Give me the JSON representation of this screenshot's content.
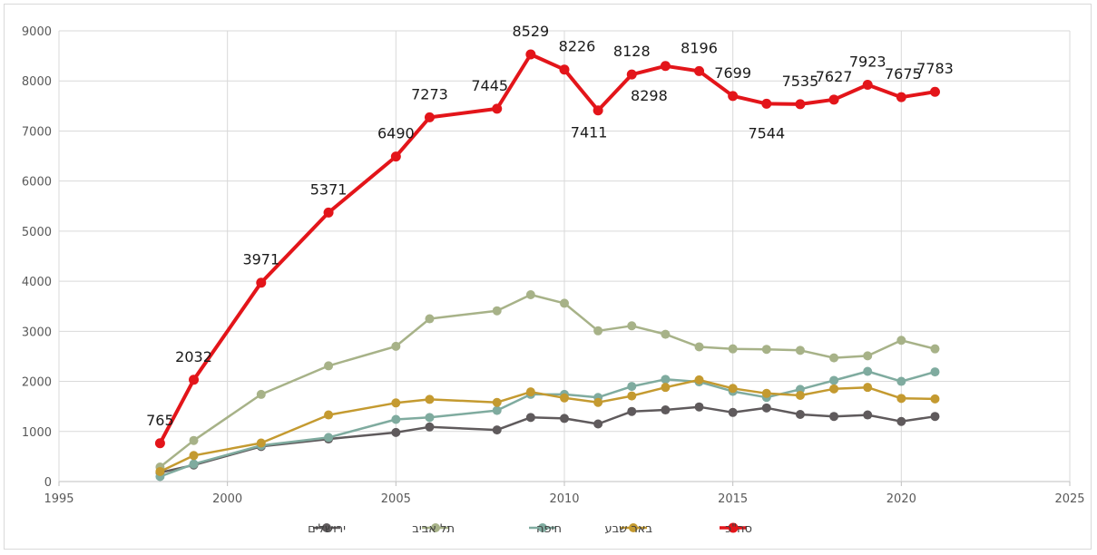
{
  "chart_data": {
    "type": "line",
    "xlim": [
      1995,
      2025
    ],
    "ylim": [
      0,
      9000
    ],
    "x_ticks": [
      1995,
      2000,
      2005,
      2010,
      2015,
      2020,
      2025
    ],
    "y_ticks": [
      0,
      1000,
      2000,
      3000,
      4000,
      5000,
      6000,
      7000,
      8000,
      9000
    ],
    "grid": true,
    "legend_position": "bottom",
    "series": [
      {
        "name": "ירושלים",
        "color": "#5f5a5c",
        "points": [
          [
            1998,
            180
          ],
          [
            1999,
            330
          ],
          [
            2001,
            700
          ],
          [
            2003,
            850
          ],
          [
            2005,
            980
          ],
          [
            2006,
            1090
          ],
          [
            2008,
            1030
          ],
          [
            2009,
            1280
          ],
          [
            2010,
            1260
          ],
          [
            2011,
            1150
          ],
          [
            2012,
            1400
          ],
          [
            2013,
            1430
          ],
          [
            2014,
            1490
          ],
          [
            2015,
            1380
          ],
          [
            2016,
            1470
          ],
          [
            2017,
            1340
          ],
          [
            2018,
            1300
          ],
          [
            2019,
            1330
          ],
          [
            2020,
            1200
          ],
          [
            2021,
            1300
          ]
        ]
      },
      {
        "name": "תל אביב",
        "color": "#a7b288",
        "points": [
          [
            1998,
            290
          ],
          [
            1999,
            820
          ],
          [
            2001,
            1740
          ],
          [
            2003,
            2310
          ],
          [
            2005,
            2700
          ],
          [
            2006,
            3250
          ],
          [
            2008,
            3410
          ],
          [
            2009,
            3730
          ],
          [
            2010,
            3560
          ],
          [
            2011,
            3010
          ],
          [
            2012,
            3110
          ],
          [
            2013,
            2940
          ],
          [
            2014,
            2690
          ],
          [
            2015,
            2650
          ],
          [
            2016,
            2640
          ],
          [
            2017,
            2620
          ],
          [
            2018,
            2470
          ],
          [
            2019,
            2510
          ],
          [
            2020,
            2820
          ],
          [
            2021,
            2650
          ]
        ]
      },
      {
        "name": "חיפה",
        "color": "#7fab9f",
        "points": [
          [
            1998,
            100
          ],
          [
            1999,
            350
          ],
          [
            2001,
            720
          ],
          [
            2003,
            880
          ],
          [
            2005,
            1240
          ],
          [
            2006,
            1280
          ],
          [
            2008,
            1420
          ],
          [
            2009,
            1740
          ],
          [
            2010,
            1740
          ],
          [
            2011,
            1680
          ],
          [
            2012,
            1900
          ],
          [
            2013,
            2040
          ],
          [
            2014,
            1990
          ],
          [
            2015,
            1800
          ],
          [
            2016,
            1680
          ],
          [
            2017,
            1840
          ],
          [
            2018,
            2020
          ],
          [
            2019,
            2200
          ],
          [
            2020,
            2000
          ],
          [
            2021,
            2190
          ]
        ]
      },
      {
        "name": "באר שבע",
        "color": "#c49a30",
        "points": [
          [
            1998,
            200
          ],
          [
            1999,
            520
          ],
          [
            2001,
            770
          ],
          [
            2003,
            1330
          ],
          [
            2005,
            1570
          ],
          [
            2006,
            1640
          ],
          [
            2008,
            1580
          ],
          [
            2009,
            1790
          ],
          [
            2010,
            1670
          ],
          [
            2011,
            1580
          ],
          [
            2012,
            1710
          ],
          [
            2013,
            1880
          ],
          [
            2014,
            2030
          ],
          [
            2015,
            1860
          ],
          [
            2016,
            1760
          ],
          [
            2017,
            1720
          ],
          [
            2018,
            1850
          ],
          [
            2019,
            1880
          ],
          [
            2020,
            1660
          ],
          [
            2021,
            1650
          ]
        ]
      },
      {
        "name": "סה\"כ",
        "color": "#e3151a",
        "labels": true,
        "points": [
          [
            1998,
            765
          ],
          [
            1999,
            2032
          ],
          [
            2001,
            3971
          ],
          [
            2003,
            5371
          ],
          [
            2005,
            6490
          ],
          [
            2006,
            7273
          ],
          [
            2008,
            7445
          ],
          [
            2009,
            8529
          ],
          [
            2010,
            8226
          ],
          [
            2011,
            7411
          ],
          [
            2012,
            8128
          ],
          [
            2013,
            8298
          ],
          [
            2014,
            8196
          ],
          [
            2015,
            7699
          ],
          [
            2016,
            7544
          ],
          [
            2017,
            7535
          ],
          [
            2018,
            7627
          ],
          [
            2019,
            7923
          ],
          [
            2020,
            7675
          ],
          [
            2021,
            7783
          ]
        ]
      }
    ]
  }
}
